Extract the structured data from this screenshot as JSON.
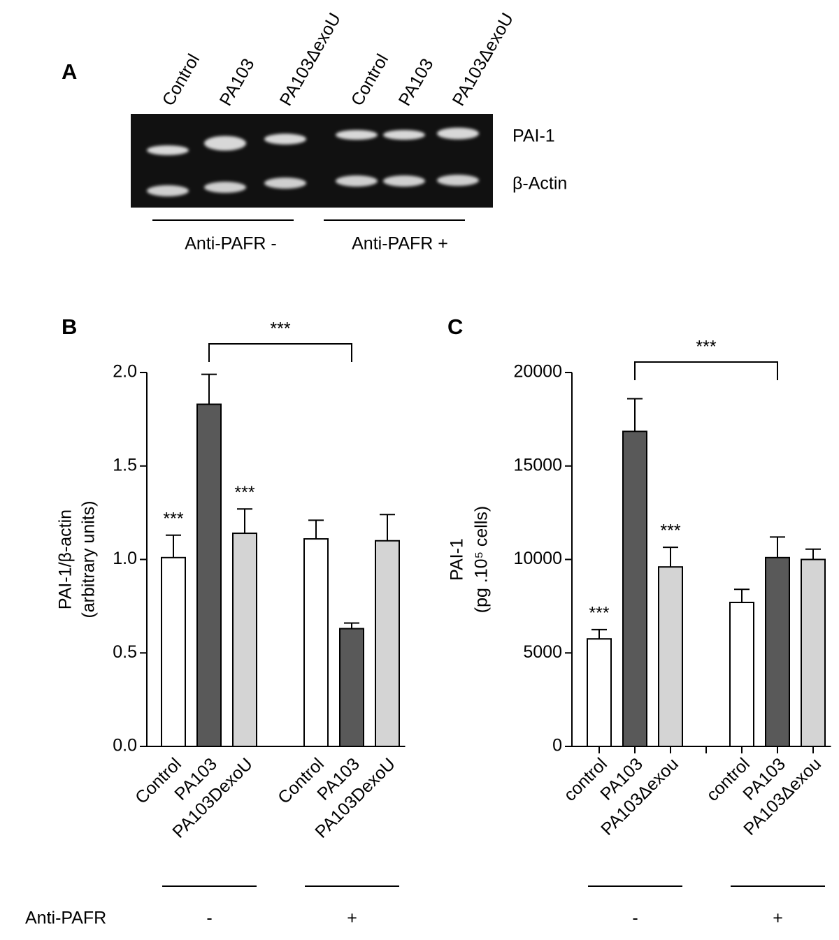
{
  "panel_a": {
    "label": "A",
    "lanes": [
      "Control",
      "PA103",
      "PA103ΔexoU",
      "Control",
      "PA103",
      "PA103ΔexoU"
    ],
    "bands": [
      "PAI-1",
      "β-Actin"
    ],
    "groups": [
      "Anti-PAFR -",
      "Anti-PAFR +"
    ]
  },
  "chart_data": [
    {
      "type": "bar",
      "panel": "B",
      "ylabel": "PAI-1/β-actin",
      "ylabel2": "(arbitrary units)",
      "categories": [
        "Control",
        "PA103",
        "PA103DexoU",
        null,
        "Control",
        "PA103",
        "PA103DexoU"
      ],
      "values": [
        1.01,
        1.83,
        1.14,
        null,
        1.11,
        0.63,
        1.1
      ],
      "errors": [
        0.12,
        0.16,
        0.13,
        null,
        0.1,
        0.03,
        0.14
      ],
      "colors": [
        "#ffffff",
        "#595959",
        "#d4d4d4",
        null,
        "#ffffff",
        "#595959",
        "#d4d4d4"
      ],
      "annotations": [
        "***",
        null,
        "***",
        null,
        null,
        null,
        null
      ],
      "bracket": {
        "text": "***",
        "between": [
          1,
          5
        ]
      },
      "ylim": [
        0,
        2
      ],
      "yticks": [
        {
          "value": 0,
          "label": "0.0"
        },
        0.5,
        {
          "value": 1,
          "label": "1.0"
        },
        1.5,
        {
          "value": 2,
          "label": "2.0"
        }
      ],
      "xtick_marks": false,
      "groups": [
        "-",
        "+"
      ]
    },
    {
      "type": "bar",
      "panel": "C",
      "ylabel": "PAI-1",
      "ylabel2": "(pg .10⁵ cells)",
      "categories": [
        "control",
        "PA103",
        "PA103Δexou",
        null,
        "control",
        "PA103",
        "PA103Δexou"
      ],
      "values": [
        5750,
        16850,
        9600,
        null,
        7700,
        10100,
        10000
      ],
      "errors": [
        500,
        1750,
        1050,
        null,
        700,
        1100,
        550
      ],
      "colors": [
        "#ffffff",
        "#595959",
        "#d4d4d4",
        null,
        "#ffffff",
        "#595959",
        "#d4d4d4"
      ],
      "annotations": [
        "***",
        null,
        "***",
        null,
        null,
        null,
        null
      ],
      "bracket": {
        "text": "***",
        "between": [
          1,
          5
        ]
      },
      "ylim": [
        0,
        20000
      ],
      "yticks": [
        0,
        5000,
        10000,
        15000,
        20000
      ],
      "xtick_marks": true,
      "groups": [
        "-",
        "+"
      ]
    }
  ],
  "footer": {
    "label": "Anti-PAFR"
  }
}
